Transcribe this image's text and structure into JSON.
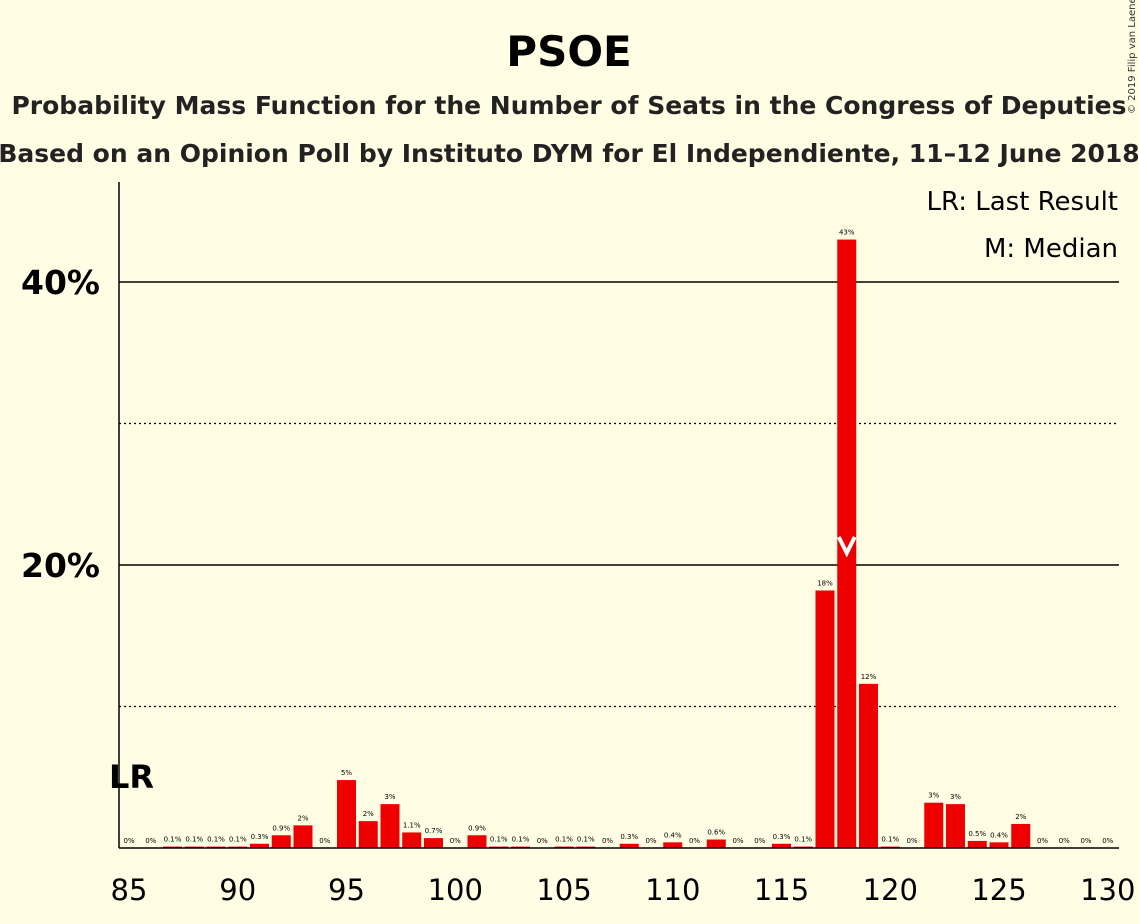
{
  "title": "PSOE",
  "subtitle1": "Probability Mass Function for the Number of Seats in the Congress of Deputies",
  "subtitle2": "Based on an Opinion Poll by Instituto DYM for El Independiente, 11–12 June 2018",
  "legend": {
    "lr": "LR: Last Result",
    "m": "M: Median"
  },
  "copyright": "© 2019 Filip van Laenen",
  "lr_marker": {
    "label": "LR",
    "seat": 85
  },
  "median_marker": {
    "label": "M",
    "seat": 118
  },
  "colors": {
    "bar": "#ee0000",
    "background": "#fffde3",
    "axis": "#000000"
  },
  "chart_data": {
    "type": "bar",
    "title": "PSOE",
    "xlabel": "",
    "ylabel": "",
    "xlim": [
      85,
      130
    ],
    "ylim": [
      0,
      47
    ],
    "x_ticks": [
      85,
      90,
      95,
      100,
      105,
      110,
      115,
      120,
      125,
      130
    ],
    "y_ticks": [
      {
        "value": 20,
        "label": "20%"
      },
      {
        "value": 40,
        "label": "40%"
      }
    ],
    "y_minor_gridlines": [
      10,
      30
    ],
    "grid": true,
    "legend_position": "top-right",
    "bars": [
      {
        "seat": 85,
        "value": 0,
        "label": "0%"
      },
      {
        "seat": 86,
        "value": 0,
        "label": "0%"
      },
      {
        "seat": 87,
        "value": 0.1,
        "label": "0.1%"
      },
      {
        "seat": 88,
        "value": 0.1,
        "label": "0.1%"
      },
      {
        "seat": 89,
        "value": 0.1,
        "label": "0.1%"
      },
      {
        "seat": 90,
        "value": 0.1,
        "label": "0.1%"
      },
      {
        "seat": 91,
        "value": 0.3,
        "label": "0.3%"
      },
      {
        "seat": 92,
        "value": 0.9,
        "label": "0.9%"
      },
      {
        "seat": 93,
        "value": 1.6,
        "label": "2%"
      },
      {
        "seat": 94,
        "value": 0,
        "label": "0%"
      },
      {
        "seat": 95,
        "value": 4.8,
        "label": "5%"
      },
      {
        "seat": 96,
        "value": 1.9,
        "label": "2%"
      },
      {
        "seat": 97,
        "value": 3.1,
        "label": "3%"
      },
      {
        "seat": 98,
        "value": 1.1,
        "label": "1.1%"
      },
      {
        "seat": 99,
        "value": 0.7,
        "label": "0.7%"
      },
      {
        "seat": 100,
        "value": 0,
        "label": "0%"
      },
      {
        "seat": 101,
        "value": 0.9,
        "label": "0.9%"
      },
      {
        "seat": 102,
        "value": 0.1,
        "label": "0.1%"
      },
      {
        "seat": 103,
        "value": 0.1,
        "label": "0.1%"
      },
      {
        "seat": 104,
        "value": 0,
        "label": "0%"
      },
      {
        "seat": 105,
        "value": 0.1,
        "label": "0.1%"
      },
      {
        "seat": 106,
        "value": 0.1,
        "label": "0.1%"
      },
      {
        "seat": 107,
        "value": 0,
        "label": "0%"
      },
      {
        "seat": 108,
        "value": 0.3,
        "label": "0.3%"
      },
      {
        "seat": 109,
        "value": 0,
        "label": "0%"
      },
      {
        "seat": 110,
        "value": 0.4,
        "label": "0.4%"
      },
      {
        "seat": 111,
        "value": 0,
        "label": "0%"
      },
      {
        "seat": 112,
        "value": 0.6,
        "label": "0.6%"
      },
      {
        "seat": 113,
        "value": 0,
        "label": "0%"
      },
      {
        "seat": 114,
        "value": 0,
        "label": "0%"
      },
      {
        "seat": 115,
        "value": 0.3,
        "label": "0.3%"
      },
      {
        "seat": 116,
        "value": 0.1,
        "label": "0.1%"
      },
      {
        "seat": 117,
        "value": 18.2,
        "label": "18%"
      },
      {
        "seat": 118,
        "value": 43,
        "label": "43%"
      },
      {
        "seat": 119,
        "value": 11.6,
        "label": "12%"
      },
      {
        "seat": 120,
        "value": 0.1,
        "label": "0.1%"
      },
      {
        "seat": 121,
        "value": 0,
        "label": "0%"
      },
      {
        "seat": 122,
        "value": 3.2,
        "label": "3%"
      },
      {
        "seat": 123,
        "value": 3.1,
        "label": "3%"
      },
      {
        "seat": 124,
        "value": 0.5,
        "label": "0.5%"
      },
      {
        "seat": 125,
        "value": 0.4,
        "label": "0.4%"
      },
      {
        "seat": 126,
        "value": 1.7,
        "label": "2%"
      },
      {
        "seat": 127,
        "value": 0,
        "label": "0%"
      },
      {
        "seat": 128,
        "value": 0,
        "label": "0%"
      },
      {
        "seat": 129,
        "value": 0,
        "label": "0%"
      },
      {
        "seat": 130,
        "value": 0,
        "label": "0%"
      }
    ]
  }
}
